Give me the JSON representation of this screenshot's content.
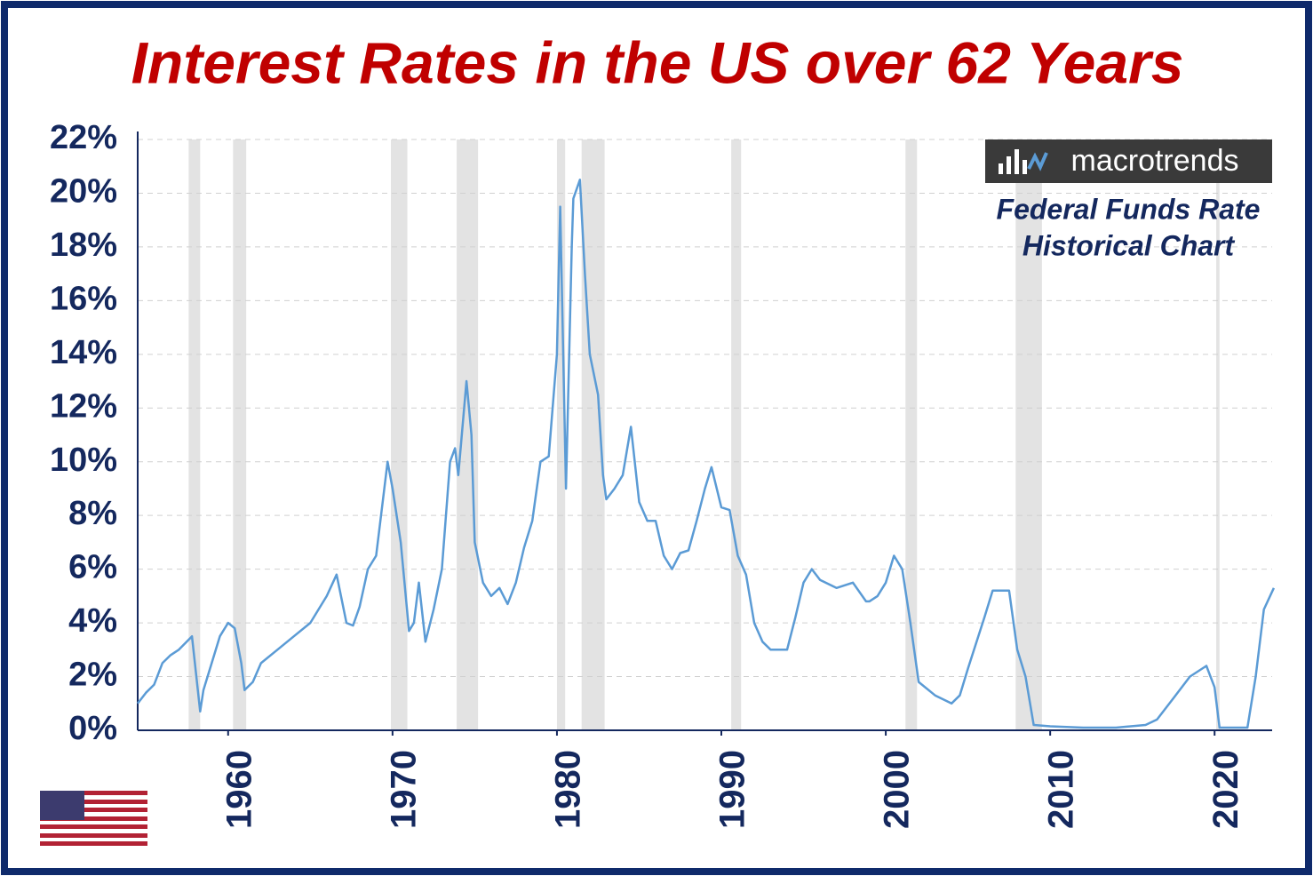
{
  "chart_data": {
    "type": "line",
    "title": "Interest Rates in the US over 62 Years",
    "annotation_lines": [
      "Federal Funds Rate",
      "Historical Chart"
    ],
    "logo": "macrotrends",
    "color": "#5b9bd5",
    "recession_color": "#e3e3e3",
    "x": [
      1954.5,
      1955,
      1955.5,
      1956,
      1956.5,
      1957,
      1957.8,
      1958.3,
      1958.5,
      1959,
      1959.5,
      1960,
      1960.4,
      1960.8,
      1961,
      1961.5,
      1962,
      1963,
      1964,
      1965,
      1966,
      1966.6,
      1967.2,
      1967.6,
      1968,
      1968.5,
      1969,
      1969.5,
      1969.7,
      1970,
      1970.5,
      1971,
      1971.3,
      1971.6,
      1972,
      1972.5,
      1973,
      1973.5,
      1973.8,
      1974,
      1974.5,
      1974.8,
      1975,
      1975.5,
      1976,
      1976.5,
      1977,
      1977.5,
      1978,
      1978.5,
      1979,
      1979.5,
      1980,
      1980.2,
      1980.55,
      1980.9,
      1981,
      1981.4,
      1981.7,
      1982,
      1982.5,
      1982.8,
      1983,
      1983.5,
      1984,
      1984.5,
      1985,
      1985.5,
      1986,
      1986.5,
      1987,
      1987.5,
      1988,
      1988.5,
      1989,
      1989.4,
      1990,
      1990.5,
      1991,
      1991.5,
      1992,
      1992.5,
      1993,
      1994,
      1994.5,
      1995,
      1995.5,
      1996,
      1997,
      1998,
      1998.8,
      1999,
      1999.5,
      2000,
      2000.5,
      2001,
      2001.5,
      2002,
      2003,
      2004,
      2004.5,
      2005,
      2006,
      2006.5,
      2007.5,
      2008,
      2008.5,
      2009,
      2010,
      2012,
      2014,
      2015.8,
      2016.5,
      2017.5,
      2018.5,
      2019.5,
      2020,
      2020.3,
      2022,
      2022.5,
      2023,
      2023.6
    ],
    "values": [
      1.0,
      1.4,
      1.7,
      2.5,
      2.8,
      3.0,
      3.5,
      0.7,
      1.5,
      2.5,
      3.5,
      4.0,
      3.8,
      2.5,
      1.5,
      1.8,
      2.5,
      3.0,
      3.5,
      4.0,
      5.0,
      5.8,
      4.0,
      3.9,
      4.6,
      6.0,
      6.5,
      9.0,
      10.0,
      9.0,
      7.0,
      3.7,
      4.0,
      5.5,
      3.3,
      4.5,
      6.0,
      10.0,
      10.5,
      9.5,
      13.0,
      11.0,
      7.0,
      5.5,
      5.0,
      5.3,
      4.7,
      5.5,
      6.8,
      7.8,
      10.0,
      10.2,
      14.0,
      19.5,
      9.0,
      18.0,
      19.8,
      20.5,
      17.0,
      14.0,
      12.5,
      9.5,
      8.6,
      9.0,
      9.5,
      11.3,
      8.5,
      7.8,
      7.8,
      6.5,
      6.0,
      6.6,
      6.7,
      7.8,
      9.0,
      9.8,
      8.3,
      8.2,
      6.5,
      5.8,
      4.0,
      3.3,
      3.0,
      3.0,
      4.2,
      5.5,
      6.0,
      5.6,
      5.3,
      5.5,
      4.8,
      4.8,
      5.0,
      5.5,
      6.5,
      6.0,
      4.0,
      1.8,
      1.3,
      1.0,
      1.3,
      2.3,
      4.2,
      5.2,
      5.2,
      3.0,
      2.0,
      0.2,
      0.15,
      0.1,
      0.1,
      0.2,
      0.4,
      1.2,
      2.0,
      2.4,
      1.6,
      0.1,
      0.1,
      2.0,
      4.5,
      5.3
    ],
    "recessions": [
      [
        1957.6,
        1958.3
      ],
      [
        1960.3,
        1961.1
      ],
      [
        1969.9,
        1970.9
      ],
      [
        1973.9,
        1975.2
      ],
      [
        1980.0,
        1980.5
      ],
      [
        1981.5,
        1982.9
      ],
      [
        1990.6,
        1991.2
      ],
      [
        2001.2,
        2001.9
      ],
      [
        2007.9,
        2009.5
      ],
      [
        2020.1,
        2020.3
      ]
    ],
    "xlim": [
      1954.5,
      2023.5
    ],
    "xticks": [
      1960,
      1970,
      1980,
      1990,
      2000,
      2010,
      2020
    ],
    "ylim": [
      0,
      22
    ],
    "yticks": [
      {
        "value": 0,
        "label": "0%"
      },
      {
        "value": 2,
        "label": "2%"
      },
      {
        "value": 4,
        "label": "4%"
      },
      {
        "value": 6,
        "label": "6%"
      },
      {
        "value": 8,
        "label": "8%"
      },
      {
        "value": 10,
        "label": "10%"
      },
      {
        "value": 12,
        "label": "12%"
      },
      {
        "value": 14,
        "label": "14%"
      },
      {
        "value": 16,
        "label": "16%"
      },
      {
        "value": 18,
        "label": "18%"
      },
      {
        "value": 20,
        "label": "20%"
      },
      {
        "value": 22,
        "label": "22%"
      }
    ],
    "grid": true
  }
}
